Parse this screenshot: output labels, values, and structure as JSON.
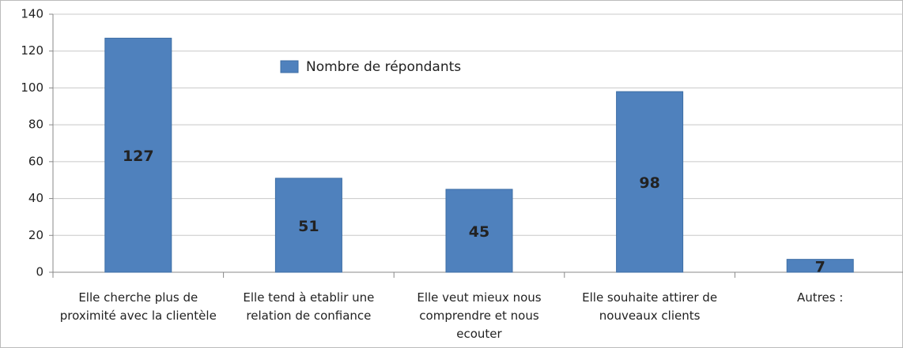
{
  "chart_data": {
    "type": "bar",
    "categories": [
      "Elle cherche plus de proximité avec la clientèle",
      "Elle tend à etablir une relation de confiance",
      "Elle veut mieux nous comprendre et nous ecouter",
      "Elle souhaite attirer de nouveaux clients",
      "Autres :"
    ],
    "series": [
      {
        "name": "Nombre de répondants",
        "color": "#4f81bd",
        "values": [
          127,
          51,
          45,
          98,
          7
        ]
      }
    ],
    "ylim": [
      0,
      140
    ],
    "yticks": [
      0,
      20,
      40,
      60,
      80,
      100,
      120,
      140
    ],
    "grid": true,
    "legend": "top"
  }
}
